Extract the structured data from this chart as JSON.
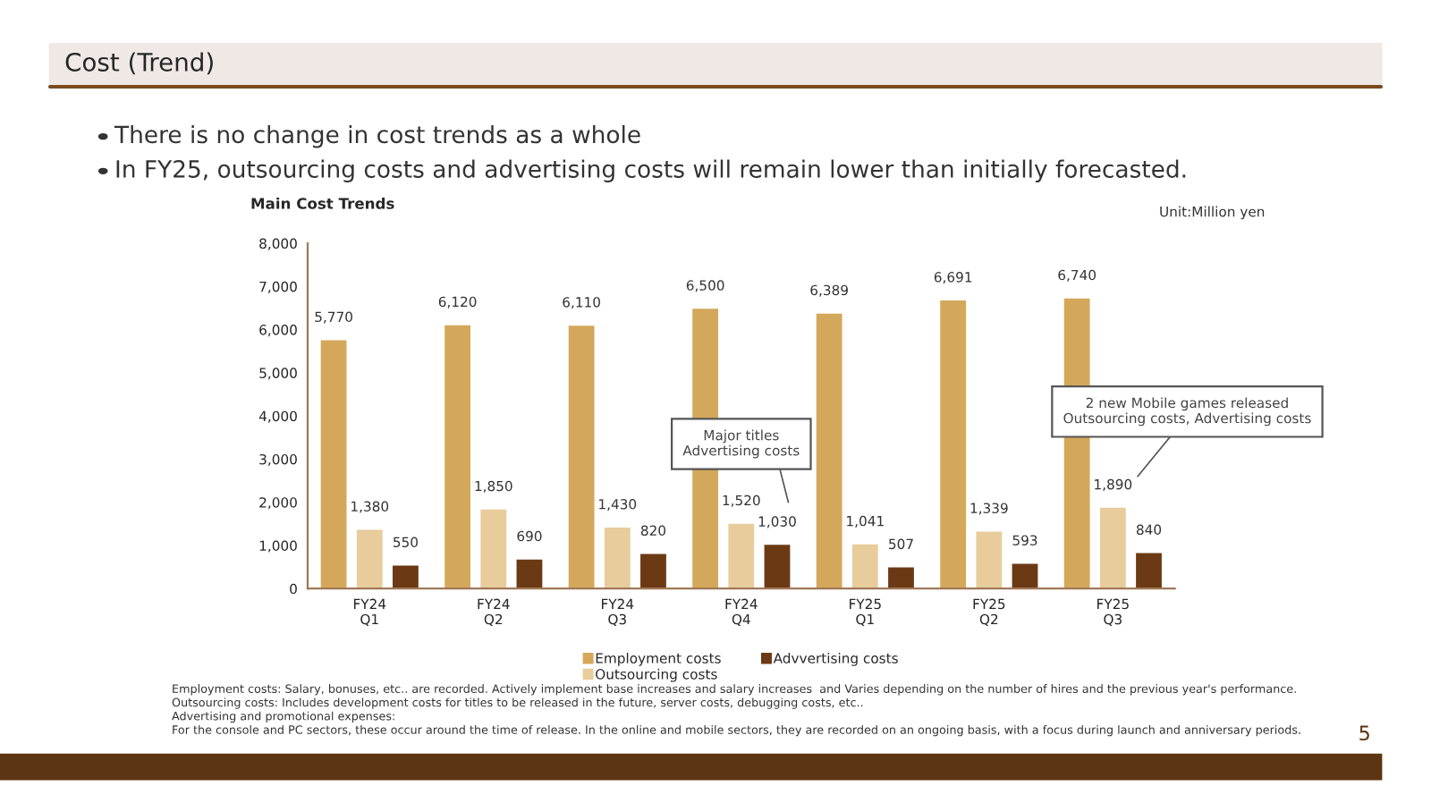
{
  "chart_data": {
    "type": "bar",
    "title": "Cost (Trend)",
    "subtitle": "Main Cost Trends",
    "categories": [
      "FY24\nQ1",
      "FY24\nQ2",
      "FY24\nQ3",
      "FY24\nQ4",
      "FY25\nQ1",
      "FY25\nQ2",
      "FY25\nQ3"
    ],
    "series": [
      {
        "name": "Employment costs",
        "color": "#d4a85a",
        "values": [
          5770,
          6120,
          6110,
          6500,
          6389,
          6691,
          6740
        ],
        "value_labels": [
          "5,770",
          "6,120",
          "6,110",
          "6,500",
          "6,389",
          "6,691",
          "6,740"
        ]
      },
      {
        "name": "Outsourcing costs",
        "color": "#e8cc9c",
        "values": [
          1380,
          1850,
          1430,
          1520,
          1041,
          1339,
          1890
        ],
        "value_labels": [
          "1,380",
          "1,850",
          "1,430",
          "1,520",
          "1,041",
          "1,339",
          "1,890"
        ]
      },
      {
        "name": "Advvertising costs",
        "color": "#6b3a14",
        "values": [
          550,
          690,
          820,
          1030,
          507,
          593,
          840
        ],
        "value_labels": [
          "550",
          "690",
          "820",
          "1,030",
          "507",
          "593",
          "840"
        ]
      }
    ],
    "ylim": [
      0,
      8000
    ],
    "yticks": [
      0,
      {
        "value": 1000,
        "label": "1,000"
      },
      {
        "value": 2000,
        "label": "2,000"
      },
      {
        "value": 3000,
        "label": "3,000"
      },
      {
        "value": 4000,
        "label": "4,000"
      },
      {
        "value": 5000,
        "label": "5,000"
      },
      {
        "value": 6000,
        "label": "6,000"
      },
      {
        "value": 7000,
        "label": "7,000"
      },
      {
        "value": 8000,
        "label": "8,000"
      }
    ],
    "grid": false,
    "legend": "bottom",
    "annotations": [
      "There is no change in cost trends as a whole",
      "In FY25, outsourcing costs and advertising costs will remain lower than initially forecasted.",
      "Unit:Million yen",
      "Major titles\nAdvertising costs",
      "2 new Mobile games released\nOutsourcing costs, Advertising costs",
      "Employment costs: Salary, bonuses, etc.. are recorded. Actively implement base increases and salary increases  and Varies depending on the number of hires and the previous year's performance.\nOutsourcing costs: Includes development costs for titles to be released in the future, server costs, debugging costs, etc..\nAdvertising and promotional expenses:\nFor the console and PC sectors, these occur around the time of release. In the online and mobile sectors, they are recorded on an ongoing basis, with a focus during launch and anniversary periods.",
      "5"
    ]
  }
}
